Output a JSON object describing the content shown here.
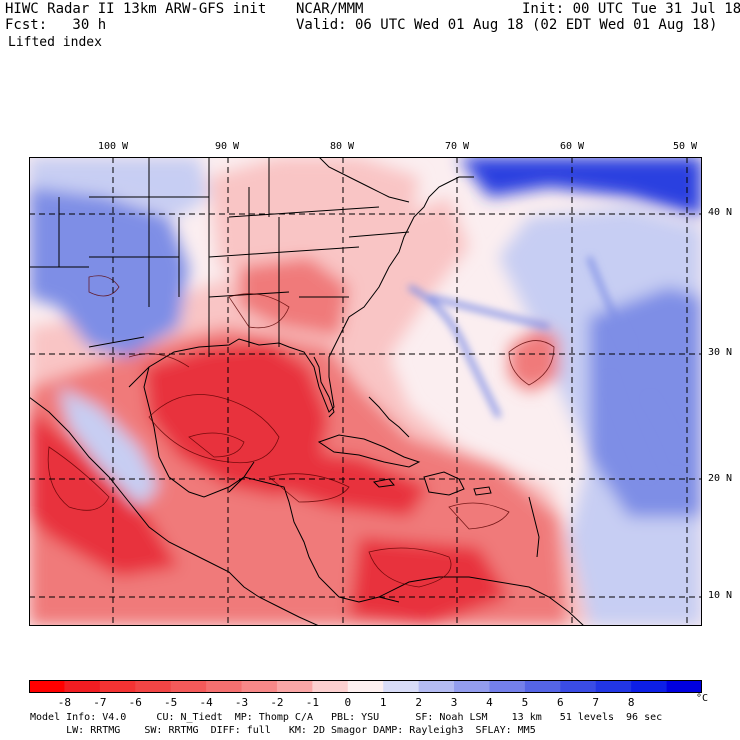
{
  "header": {
    "title": "HIWC Radar II 13km ARW-GFS init",
    "org": "NCAR/MMM",
    "init": "Init: 00 UTC Tue 31 Jul 18",
    "fcst": "Fcst:   30 h",
    "valid": "Valid: 06 UTC Wed 01 Aug 18 (02 EDT Wed 01 Aug 18)",
    "field": "Lifted index"
  },
  "map": {
    "lon_labels": [
      "100 W",
      "90 W",
      "80 W",
      "70 W",
      "60 W",
      "50 W"
    ],
    "lat_labels": [
      "40 N",
      "30 N",
      "20 N",
      "10 N"
    ],
    "colors": {
      "strong_neg": "#e8323c",
      "mid_neg": "#f07a7a",
      "light_neg": "#f9c5c5",
      "neutral": "#fbeef0",
      "light_pos": "#c7cef3",
      "mid_pos": "#7e8ee6",
      "strong_pos": "#2b3fe0",
      "land_line": "#000000",
      "grid_line": "#000000"
    }
  },
  "colorbar": {
    "labels": [
      "-8",
      "-7",
      "-6",
      "-5",
      "-4",
      "-3",
      "-2",
      "-1",
      "0",
      "1",
      "2",
      "3",
      "4",
      "5",
      "6",
      "7",
      "8"
    ],
    "unit": "°C",
    "colors": [
      "#ff0000",
      "#f21d22",
      "#f43333",
      "#f24545",
      "#f45a5a",
      "#f57070",
      "#f78888",
      "#faa6a6",
      "#fcd0d0",
      "#fdf0f0",
      "#d8dcf7",
      "#b4bbf2",
      "#939dee",
      "#7480ea",
      "#5565e6",
      "#3a4ce4",
      "#2236e4",
      "#0d1fe6",
      "#0000e0"
    ]
  },
  "footer": {
    "line1": "Model Info: V4.0     CU: N_Tiedt  MP: Thomp C/A   PBL: YSU      SF: Noah LSM    13 km   51 levels  96 sec",
    "line2": "      LW: RRTMG    SW: RRTMG  DIFF: full   KM: 2D Smagor DAMP: Rayleigh3  SFLAY: MM5"
  }
}
